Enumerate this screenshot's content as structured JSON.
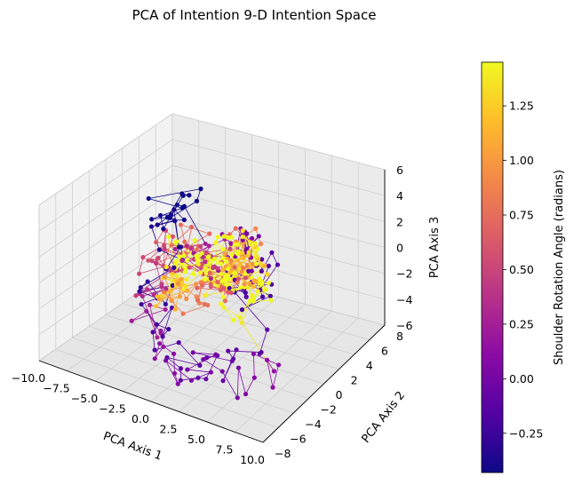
{
  "chart_data": {
    "type": "scatter",
    "subtype": "3d-scatter-with-trajectory-line",
    "title": "PCA of Intention 9-D Intention Space",
    "xlabel": "PCA Axis 1",
    "ylabel": "PCA Axis 2",
    "zlabel": "PCA Axis 3",
    "xlim": [
      -10,
      10
    ],
    "ylim": [
      -8,
      8
    ],
    "zlim": [
      -6,
      6
    ],
    "xticks": [
      "−10.0",
      "−7.5",
      "−5.0",
      "−2.5",
      "0.0",
      "2.5",
      "5.0",
      "7.5",
      "10.0"
    ],
    "yticks": [
      "−8",
      "−6",
      "−4",
      "−2",
      "0",
      "2",
      "4",
      "6",
      "8"
    ],
    "zticks": [
      "−6",
      "−4",
      "−2",
      "0",
      "2",
      "4",
      "6"
    ],
    "grid": true,
    "colormap": "plasma",
    "colorbar": {
      "label": "Shoulder Rotation Angle (radians)",
      "range": [
        -0.43,
        1.45
      ],
      "ticks": [
        "−0.25",
        "0.00",
        "0.25",
        "0.50",
        "0.75",
        "1.00",
        "1.25"
      ],
      "tick_values": [
        -0.25,
        0.0,
        0.25,
        0.5,
        0.75,
        1.0,
        1.25
      ],
      "placement": "right"
    },
    "colormap_stops": [
      "#0d0887",
      "#5302a3",
      "#8b0aa5",
      "#b83289",
      "#db5c68",
      "#f48849",
      "#febd2a",
      "#f0f921"
    ],
    "points": {
      "count": 420,
      "description_note": "trajectory of points connected in sequence, colored by shoulder rotation angle",
      "samples": [
        {
          "x": -7.5,
          "y": 0,
          "z": 1,
          "c": -0.3
        },
        {
          "x": -5,
          "y": 2,
          "z": 2,
          "c": 0.2
        },
        {
          "x": 0,
          "y": 0,
          "z": 0,
          "c": 1.3
        },
        {
          "x": 3,
          "y": 1,
          "z": 1,
          "c": 1.4
        },
        {
          "x": 6,
          "y": 4,
          "z": 2,
          "c": 0.4
        },
        {
          "x": 8,
          "y": 0,
          "z": -2,
          "c": 0.3
        },
        {
          "x": -3,
          "y": -5,
          "z": -3,
          "c": -0.35
        },
        {
          "x": 2,
          "y": 5,
          "z": 4,
          "c": 0.8
        }
      ]
    }
  }
}
